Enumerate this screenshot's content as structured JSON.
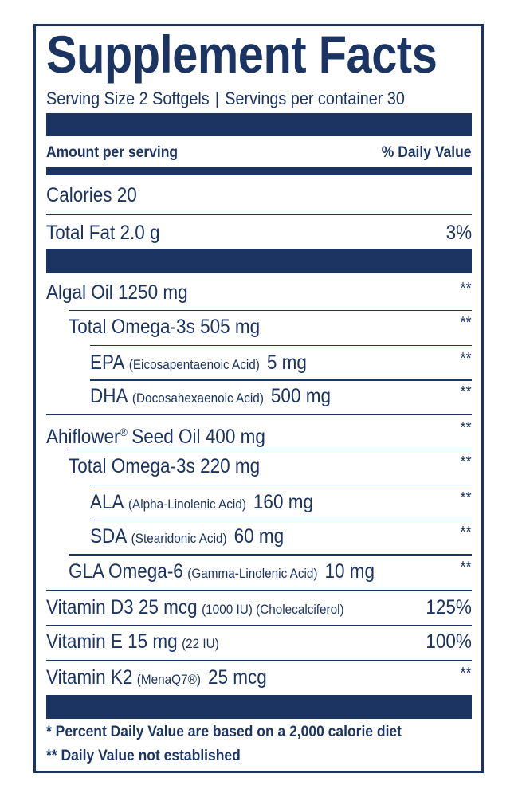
{
  "title": "Supplement Facts",
  "serving": {
    "size": "Serving Size 2 Softgels",
    "separator": "|",
    "servings": "Servings per container 30"
  },
  "header": {
    "amount": "Amount per serving",
    "daily_value": "% Daily Value"
  },
  "rows": [
    {
      "name": "Calories 20"
    },
    {
      "name": "Total Fat 2.0 g",
      "dv": "3%"
    },
    {
      "name": "Algal Oil 1250 mg",
      "dv": "**"
    },
    {
      "name": "Total Omega-3s 505 mg",
      "dv": "**"
    },
    {
      "name": "EPA",
      "note": "(Eicosapentaenoic Acid)",
      "rest": "5 mg",
      "dv": "**"
    },
    {
      "name": "DHA",
      "note": "(Docosahexaenoic Acid)",
      "rest": "500 mg",
      "dv": "**"
    },
    {
      "name": "Ahiflower",
      "sup": "®",
      "rest": "Seed Oil 400 mg",
      "dv": "**"
    },
    {
      "name": "Total Omega-3s 220 mg",
      "dv": "**"
    },
    {
      "name": "ALA",
      "note": "(Alpha-Linolenic Acid)",
      "rest": "160 mg",
      "dv": "**"
    },
    {
      "name": "SDA",
      "note": "(Stearidonic Acid)",
      "rest": "60 mg",
      "dv": "**"
    },
    {
      "name": "GLA Omega-6",
      "note": "(Gamma-Linolenic Acid)",
      "rest": "10 mg",
      "dv": "**"
    },
    {
      "name": "Vitamin D3 25 mcg",
      "note": "(1000 IU) (Cholecalciferol)",
      "dv": "125%"
    },
    {
      "name": "Vitamin E 15 mg",
      "note": "(22 IU)",
      "dv": "100%"
    },
    {
      "name": "Vitamin K2",
      "note": "(MenaQ7®)",
      "rest": "25 mcg",
      "dv": "**"
    }
  ],
  "footnotes": [
    "* Percent Daily Value are based on a 2,000 calorie diet",
    "** Daily Value not established"
  ]
}
